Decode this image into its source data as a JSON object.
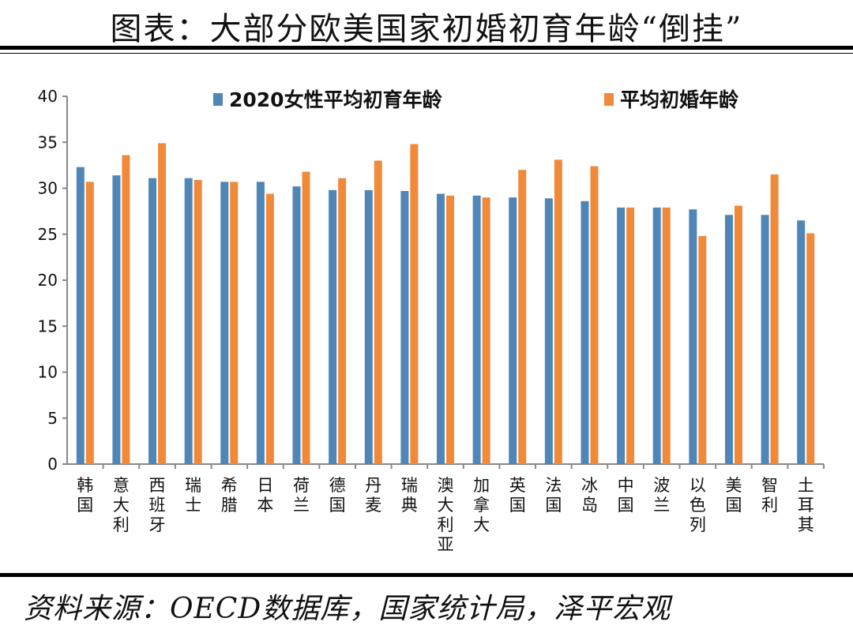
{
  "title": "图表：大部分欧美国家初婚初育年龄“倒挂”",
  "source": "资料来源：OECD数据库，国家统计局，泽平宏观",
  "chart_data": {
    "type": "bar",
    "title": "",
    "xlabel": "",
    "ylabel": "",
    "ylim": [
      0,
      40
    ],
    "yticks": [
      0,
      5,
      10,
      15,
      20,
      25,
      30,
      35,
      40
    ],
    "grid": false,
    "legend_position": "top",
    "categories": [
      "韩国",
      "意大利",
      "西班牙",
      "瑞士",
      "希腊",
      "日本",
      "荷兰",
      "德国",
      "丹麦",
      "瑞典",
      "澳大利亚",
      "加拿大",
      "英国",
      "法国",
      "冰岛",
      "中国",
      "波兰",
      "以色列",
      "美国",
      "智利",
      "土耳其"
    ],
    "series": [
      {
        "name": "2020女性平均初育年龄",
        "color": "#4f86b8",
        "values": [
          32.3,
          31.4,
          31.1,
          31.1,
          30.7,
          30.7,
          30.2,
          29.8,
          29.8,
          29.7,
          29.4,
          29.2,
          29.0,
          28.9,
          28.6,
          27.9,
          27.9,
          27.7,
          27.1,
          27.1,
          26.5
        ]
      },
      {
        "name": "平均初婚年龄",
        "color": "#f08a3a",
        "values": [
          30.7,
          33.6,
          34.9,
          30.9,
          30.7,
          29.4,
          31.8,
          31.1,
          33.0,
          34.8,
          29.2,
          29.0,
          32.0,
          33.1,
          32.4,
          27.9,
          27.9,
          24.8,
          28.1,
          31.5,
          25.1
        ]
      }
    ]
  }
}
